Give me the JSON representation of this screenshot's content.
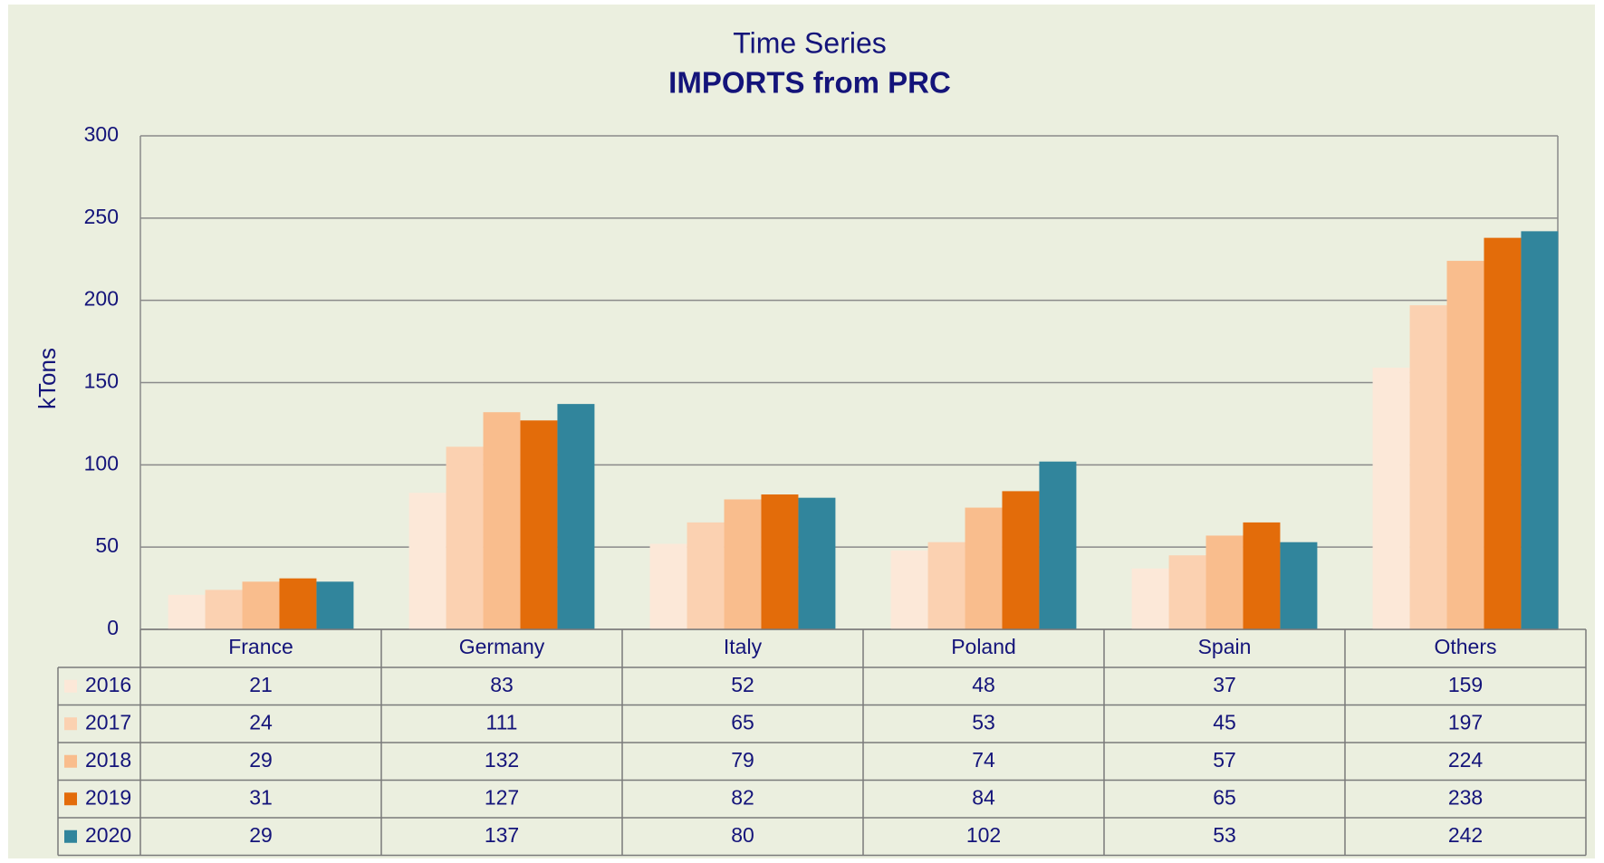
{
  "chart_data": {
    "type": "bar",
    "title": "Time Series",
    "subtitle": "IMPORTS from PRC",
    "y_label": "kTons",
    "categories": [
      "France",
      "Germany",
      "Italy",
      "Poland",
      "Spain",
      "Others"
    ],
    "series": [
      {
        "name": "2016",
        "color": "#fce8d8",
        "values": [
          21,
          83,
          52,
          48,
          37,
          159
        ]
      },
      {
        "name": "2017",
        "color": "#fbd1b1",
        "values": [
          24,
          111,
          65,
          53,
          45,
          197
        ]
      },
      {
        "name": "2018",
        "color": "#f9bd8d",
        "values": [
          29,
          132,
          79,
          74,
          57,
          224
        ]
      },
      {
        "name": "2019",
        "color": "#e36c0a",
        "values": [
          31,
          127,
          82,
          84,
          65,
          238
        ]
      },
      {
        "name": "2020",
        "color": "#31859c",
        "values": [
          29,
          137,
          80,
          102,
          53,
          242
        ]
      }
    ],
    "ylim": [
      0,
      300
    ],
    "yticks": [
      0,
      50,
      100,
      150,
      200,
      250,
      300
    ],
    "grid": true,
    "data_table": true
  }
}
